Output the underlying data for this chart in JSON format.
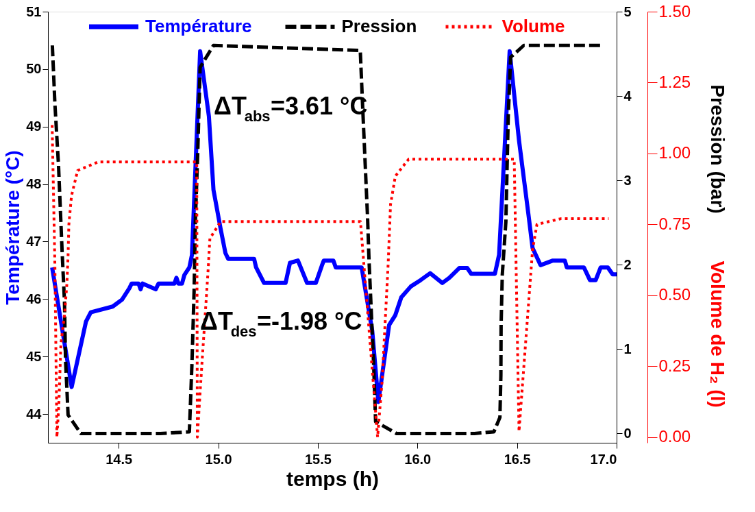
{
  "chart_data": {
    "type": "line",
    "xlabel": "temps (h)",
    "ylabel": "Température (°C)",
    "y2label": "Pression (bar)",
    "y3label": "Volume de H₂ (l)",
    "xlim": [
      14.145,
      17.0
    ],
    "xticks": [
      {
        "value": 14.5,
        "label": "14.5"
      },
      {
        "value": 15.0,
        "label": "15.0"
      },
      {
        "value": 15.5,
        "label": "15.5"
      },
      {
        "value": 16.0,
        "label": "16.0"
      },
      {
        "value": 16.5,
        "label": "16.5"
      },
      {
        "value": 17.0,
        "label": "17.0"
      }
    ],
    "ylim": [
      43.5,
      51
    ],
    "yticks": [
      44,
      45,
      46,
      47,
      48,
      49,
      50,
      51
    ],
    "y2lim": [
      -0.11,
      5
    ],
    "y2ticks": [
      0,
      1,
      2,
      3,
      4,
      5
    ],
    "y3lim": [
      -0.02,
      1.5
    ],
    "y3ticks": [
      {
        "value": 0,
        "label": "0.00"
      },
      {
        "value": 0.25,
        "label": "0.25"
      },
      {
        "value": 0.5,
        "label": "0.50"
      },
      {
        "value": 0.75,
        "label": "0.75"
      },
      {
        "value": 1.0,
        "label": "1.00"
      },
      {
        "value": 1.25,
        "label": "1.25"
      },
      {
        "value": 1.5,
        "label": "1.50"
      }
    ],
    "legend": "top",
    "marker": "none",
    "annotations": [
      "ΔT$_{abs}$=3.61 °C",
      "ΔT$_{des}$=-1.98 °C"
    ],
    "series": [
      {
        "name": "Température",
        "color": "#0000ff",
        "axis": "y",
        "line_style": "solid",
        "x": [
          14.166,
          14.264,
          14.336,
          14.36,
          14.47,
          14.517,
          14.554,
          14.565,
          14.6,
          14.61,
          14.62,
          14.686,
          14.7,
          14.78,
          14.79,
          14.8,
          14.818,
          14.83,
          14.855,
          14.868,
          14.909,
          14.953,
          14.976,
          15.012,
          15.036,
          15.05,
          15.18,
          15.19,
          15.23,
          15.338,
          15.36,
          15.4,
          15.42,
          15.446,
          15.49,
          15.52,
          15.53,
          15.578,
          15.59,
          15.72,
          15.773,
          15.804,
          15.858,
          15.889,
          15.919,
          15.967,
          16.016,
          16.064,
          16.125,
          16.16,
          16.21,
          16.25,
          16.27,
          16.389,
          16.41,
          16.463,
          16.51,
          16.557,
          16.578,
          16.618,
          16.68,
          16.74,
          16.75,
          16.836,
          16.866,
          16.895,
          16.92,
          16.956,
          16.98,
          17.0
        ],
        "values": [
          46.55,
          44.47,
          45.61,
          45.77,
          45.87,
          45.99,
          46.19,
          46.27,
          46.27,
          46.17,
          46.27,
          46.17,
          46.27,
          46.27,
          46.37,
          46.27,
          46.27,
          46.42,
          46.55,
          46.77,
          50.31,
          49.18,
          47.9,
          47.22,
          46.8,
          46.7,
          46.7,
          46.55,
          46.28,
          46.28,
          46.63,
          46.67,
          46.5,
          46.28,
          46.28,
          46.58,
          46.67,
          46.67,
          46.55,
          46.55,
          45.45,
          44.21,
          45.55,
          45.72,
          46.03,
          46.22,
          46.33,
          46.45,
          46.28,
          46.37,
          46.54,
          46.54,
          46.44,
          46.44,
          46.77,
          50.31,
          48.76,
          47.48,
          46.89,
          46.59,
          46.67,
          46.67,
          46.55,
          46.55,
          46.33,
          46.33,
          46.55,
          46.55,
          46.43,
          46.43
        ]
      },
      {
        "name": "Pression",
        "color": "#000000",
        "axis": "y2",
        "line_style": "dashed",
        "x": [
          14.167,
          14.18,
          14.198,
          14.216,
          14.228,
          14.233,
          14.246,
          14.31,
          14.71,
          14.855,
          14.868,
          14.879,
          14.885,
          14.897,
          14.909,
          14.976,
          15.713,
          15.726,
          15.738,
          15.75,
          15.757,
          15.769,
          15.78,
          15.79,
          15.895,
          16.287,
          16.384,
          16.414,
          16.419,
          16.42,
          16.426,
          16.444,
          16.456,
          16.468,
          16.534,
          16.93
        ],
        "values": [
          4.6,
          3.9,
          3.18,
          2.16,
          1.56,
          0.89,
          0.22,
          0.0,
          0.0,
          0.02,
          0.83,
          1.71,
          2.51,
          3.33,
          4.34,
          4.6,
          4.54,
          3.82,
          3.18,
          2.54,
          2.05,
          1.41,
          0.83,
          0.14,
          0.0,
          0.0,
          0.02,
          0.19,
          0.69,
          1.27,
          1.88,
          2.51,
          3.76,
          4.46,
          4.6,
          4.6
        ]
      },
      {
        "name": "Volume",
        "color": "#ff0000",
        "axis": "y3",
        "line_style": "dotted",
        "x": [
          14.166,
          14.18,
          14.19,
          14.2,
          14.21,
          14.228,
          14.24,
          14.246,
          14.25,
          14.263,
          14.294,
          14.397,
          14.892,
          14.895,
          14.91,
          14.92,
          14.94,
          14.95,
          14.958,
          15.012,
          15.714,
          15.8,
          15.823,
          15.853,
          15.865,
          15.889,
          15.956,
          16.486,
          16.51,
          16.578,
          16.6,
          16.72,
          16.96
        ],
        "values": [
          1.1,
          0.6,
          0.0,
          0.12,
          0.33,
          0.43,
          0.54,
          0.64,
          0.75,
          0.85,
          0.94,
          0.97,
          0.97,
          0.0,
          0.17,
          0.28,
          0.49,
          0.6,
          0.7,
          0.76,
          0.76,
          0.0,
          0.2,
          0.61,
          0.82,
          0.92,
          0.98,
          0.98,
          0.02,
          0.66,
          0.75,
          0.77,
          0.77
        ]
      }
    ]
  }
}
